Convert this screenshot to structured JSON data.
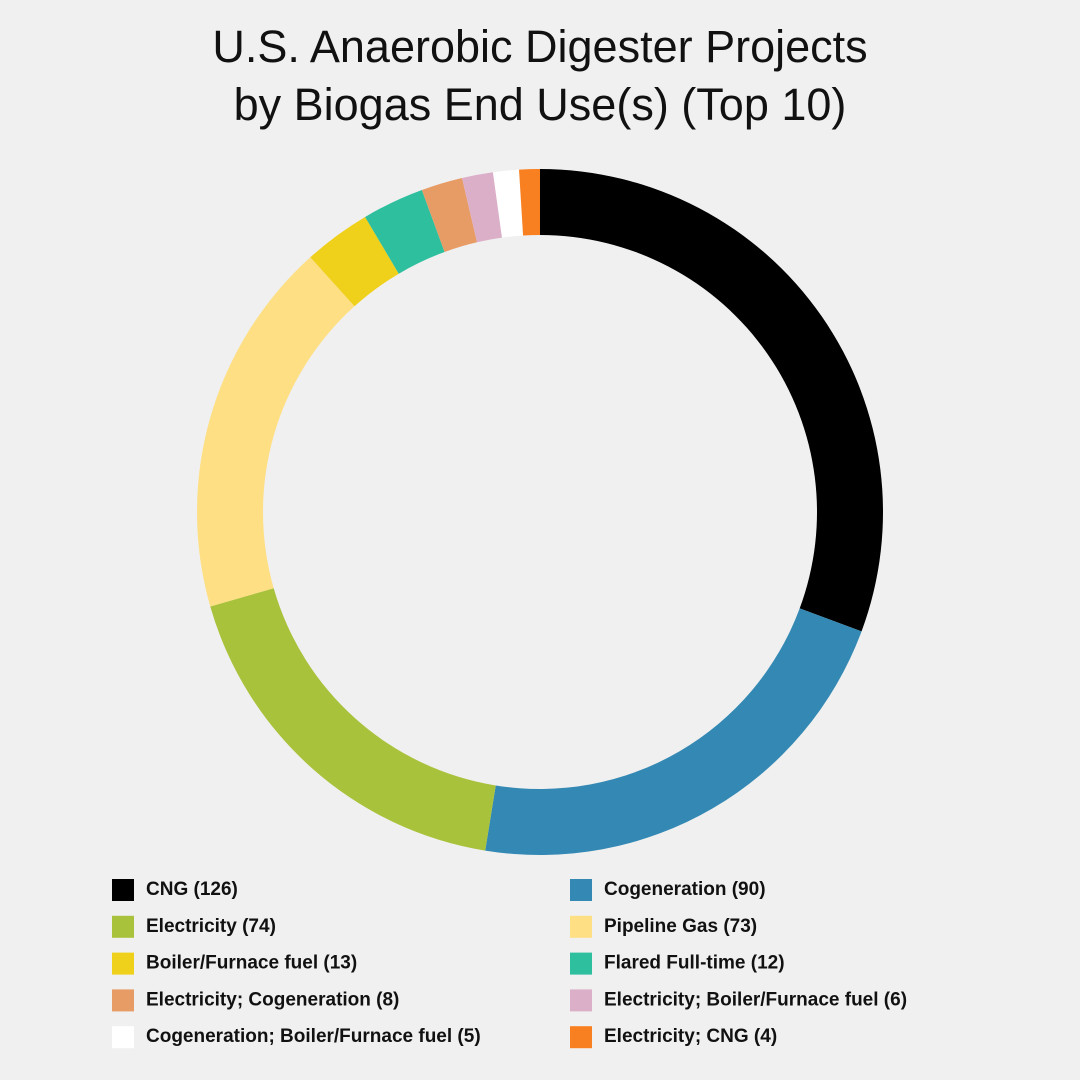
{
  "chart_data": {
    "type": "donut",
    "title": [
      "U.S. Anaerobic Digester Projects",
      "by Biogas End Use(s) (Top 10)"
    ],
    "categories": [
      "CNG (126)",
      "Cogeneration (90)",
      "Electricity (74)",
      "Pipeline Gas (73)",
      "Boiler/Furnace fuel (13)",
      "Flared Full-time (12)",
      "Electricity; Cogeneration (8)",
      "Electricity; Boiler/Furnace fuel (6)",
      "Cogeneration; Boiler/Furnace fuel (5)",
      "Electricity; CNG (4)"
    ],
    "values": [
      126,
      90,
      74,
      73,
      13,
      12,
      8,
      6,
      5,
      4
    ],
    "colors": [
      "#000000",
      "#3389b3",
      "#a9c23b",
      "#fedf83",
      "#efd01b",
      "#2ebf9f",
      "#e79c66",
      "#dcafc9",
      "#ffffff",
      "#f98020"
    ]
  }
}
